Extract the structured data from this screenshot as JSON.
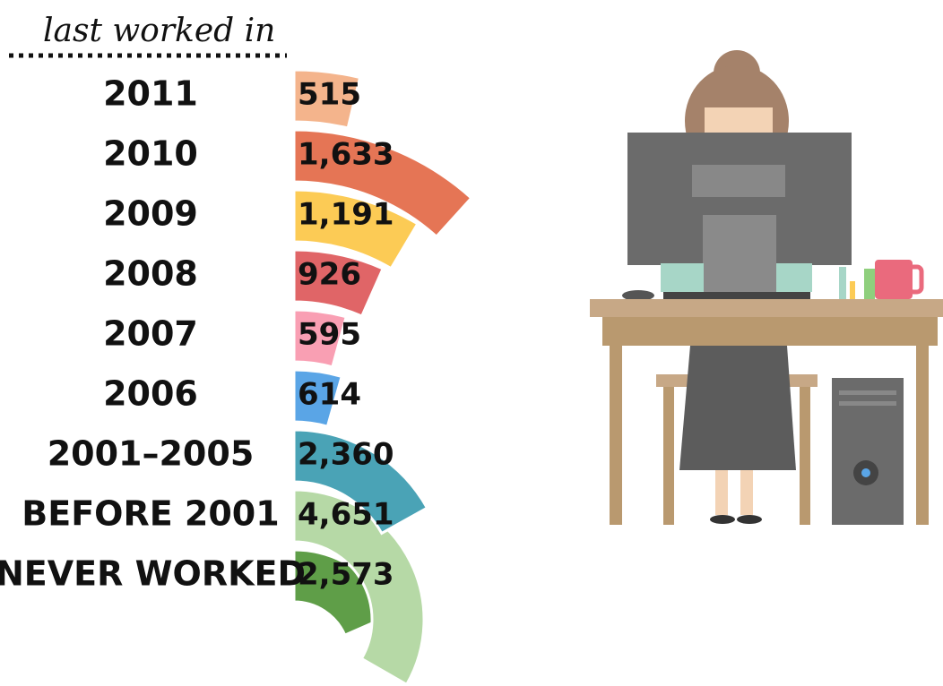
{
  "chart_data": {
    "type": "radial_bar",
    "title": "last worked in",
    "categories": [
      "2011",
      "2010",
      "2009",
      "2008",
      "2007",
      "2006",
      "2001–2005",
      "BEFORE 2001",
      "NEVER WORKED"
    ],
    "values": [
      515,
      1633,
      1191,
      926,
      595,
      614,
      2360,
      4651,
      2573
    ],
    "value_labels": [
      "515",
      "1,633",
      "1,191",
      "926",
      "595",
      "614",
      "2,360",
      "4,651",
      "2,573"
    ],
    "colors": [
      "#f4b48c",
      "#e57555",
      "#fccb55",
      "#e06567",
      "#f99fb3",
      "#5aa5e6",
      "#4aa3b6",
      "#b6d9a6",
      "#5f9e48"
    ]
  }
}
